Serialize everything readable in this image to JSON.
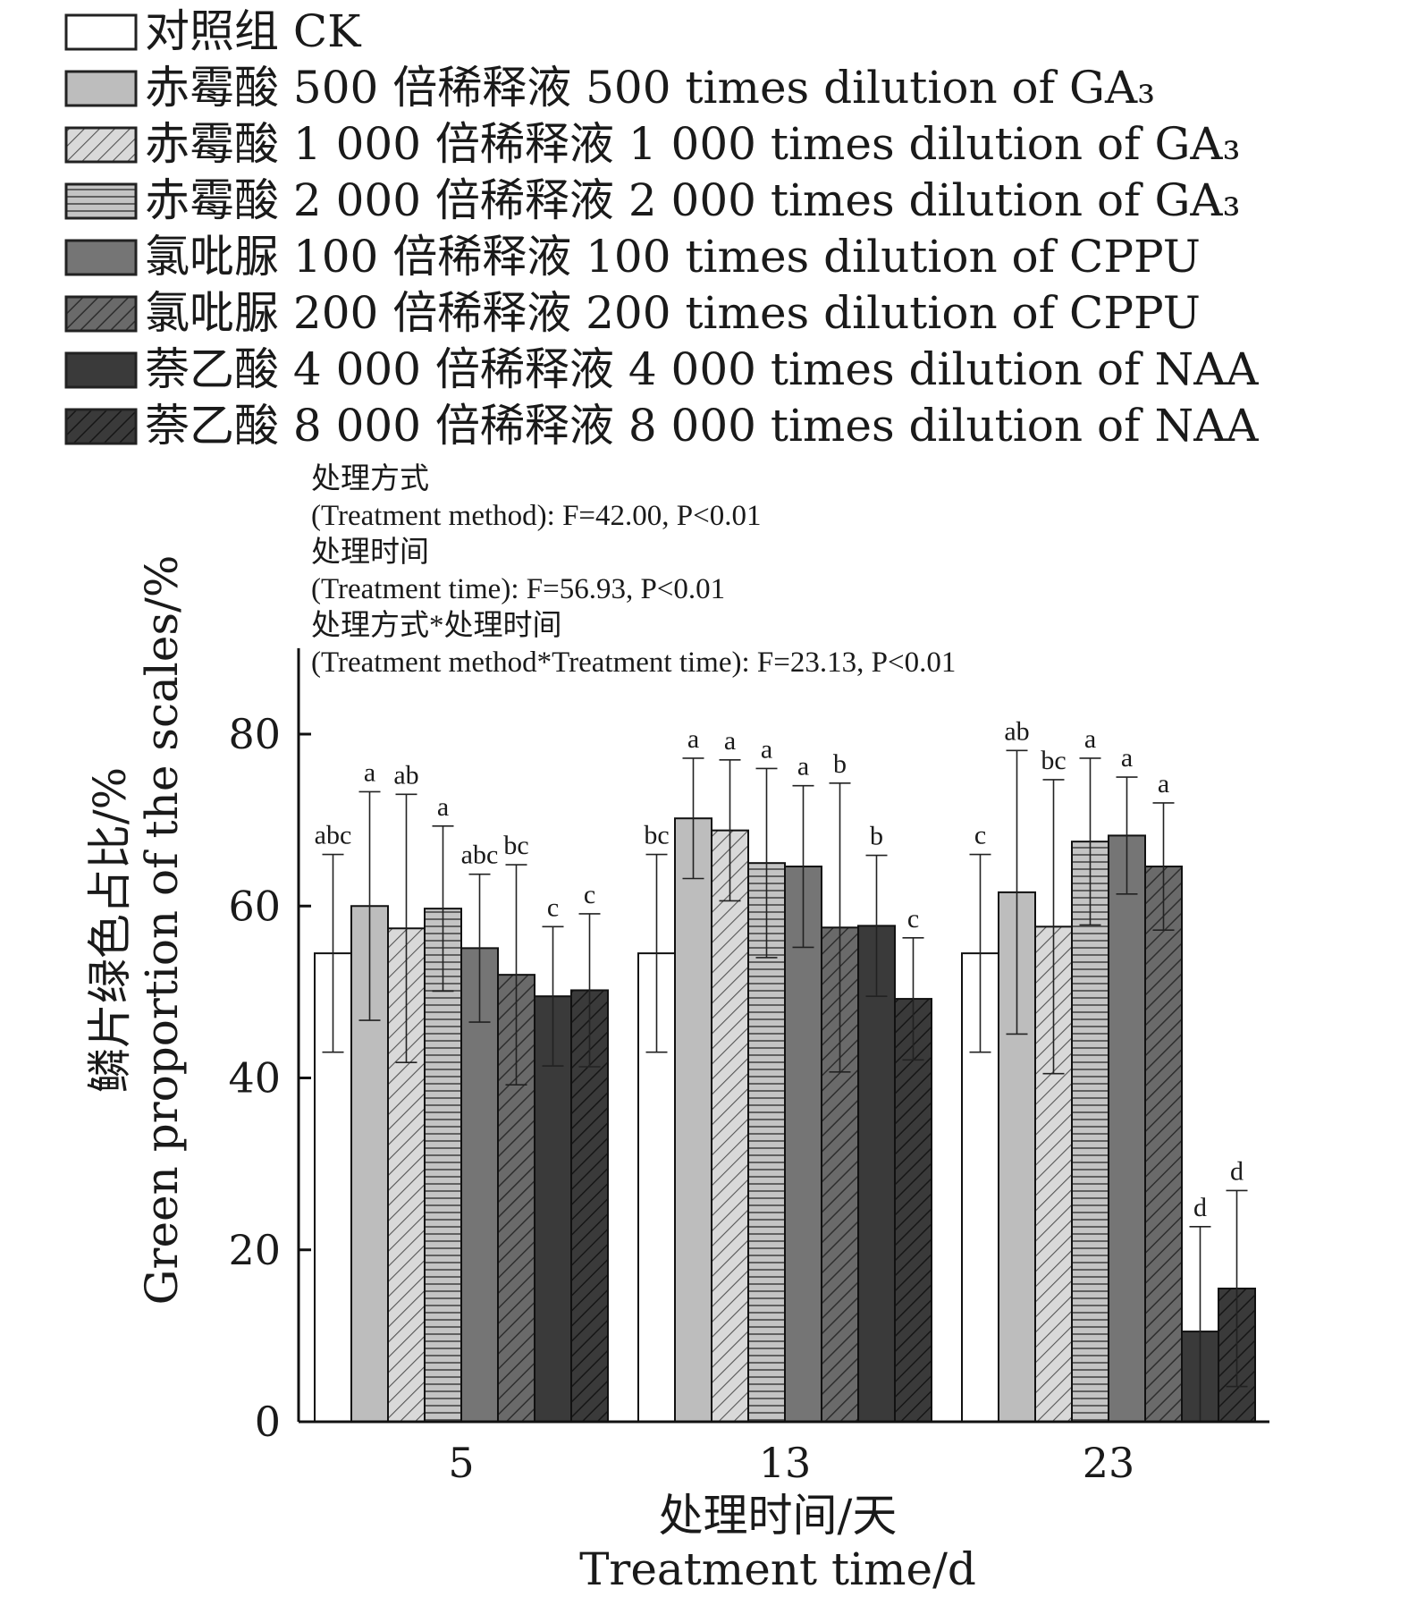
{
  "chart_data": {
    "type": "bar",
    "categories": [
      "5",
      "13",
      "23"
    ],
    "series": [
      {
        "name": "对照组 CK",
        "values": [
          54.5,
          54.5,
          54.5
        ],
        "errors": [
          11.5,
          11.5,
          11.5
        ],
        "letters": [
          "abc",
          "bc",
          "c"
        ],
        "pattern": "white"
      },
      {
        "name": "赤霉酸 500 倍稀释液 500 times dilution of GA₃",
        "values": [
          60.0,
          70.2,
          61.6
        ],
        "errors": [
          13.3,
          7.0,
          16.5
        ],
        "letters": [
          "a",
          "a",
          "ab"
        ],
        "pattern": "light-gray"
      },
      {
        "name": "赤霉酸 1 000 倍稀释液 1 000 times dilution of GA₃",
        "values": [
          57.4,
          68.8,
          57.6
        ],
        "errors": [
          15.6,
          8.2,
          17.1
        ],
        "letters": [
          "ab",
          "a",
          "bc"
        ],
        "pattern": "light-hatch"
      },
      {
        "name": "赤霉酸 2 000 倍稀释液 2 000 times dilution of GA₃",
        "values": [
          59.7,
          65.0,
          67.5
        ],
        "errors": [
          9.6,
          11.0,
          9.7
        ],
        "letters": [
          "a",
          "a",
          "a"
        ],
        "pattern": "horizontal-lines"
      },
      {
        "name": "氯吡脲 100 倍稀释液 100 times dilution of CPPU",
        "values": [
          55.1,
          64.6,
          68.2
        ],
        "errors": [
          8.6,
          9.4,
          6.8
        ],
        "letters": [
          "abc",
          "a",
          "a"
        ],
        "pattern": "mid-gray"
      },
      {
        "name": "氯吡脲 200 倍稀释液 200 times dilution of CPPU",
        "values": [
          52.0,
          57.5,
          64.6
        ],
        "errors": [
          12.8,
          16.8,
          7.4
        ],
        "letters": [
          "bc",
          "b",
          "a"
        ],
        "pattern": "dark-hatch"
      },
      {
        "name": "萘乙酸 4 000 倍稀释液 4 000 times dilution of NAA",
        "values": [
          49.5,
          57.7,
          10.5
        ],
        "errors": [
          8.1,
          8.2,
          12.2
        ],
        "letters": [
          "c",
          "b",
          "d"
        ],
        "pattern": "dark"
      },
      {
        "name": "萘乙酸 8 000 倍稀释液 8 000 times dilution of NAA",
        "values": [
          50.2,
          49.2,
          15.5
        ],
        "errors": [
          8.9,
          7.1,
          11.4
        ],
        "letters": [
          "c",
          "c",
          "d"
        ],
        "pattern": "darkest-hatch"
      }
    ],
    "stats": [
      "处理方式",
      "(Treatment method): F=42.00, P<0.01",
      "处理时间",
      "(Treatment time): F=56.93, P<0.01",
      "处理方式*处理时间",
      "(Treatment method*Treatment time): F=23.13, P<0.01"
    ],
    "ylabel_cn": "鳞片绿色占比/%",
    "ylabel_en": "Green proportion of the scales/%",
    "xlabel_cn": "处理时间/天",
    "xlabel_en": "Treatment time/d",
    "ylim": [
      0,
      90
    ],
    "yticks": [
      0,
      20,
      40,
      60,
      80
    ],
    "legend_position": "top"
  }
}
